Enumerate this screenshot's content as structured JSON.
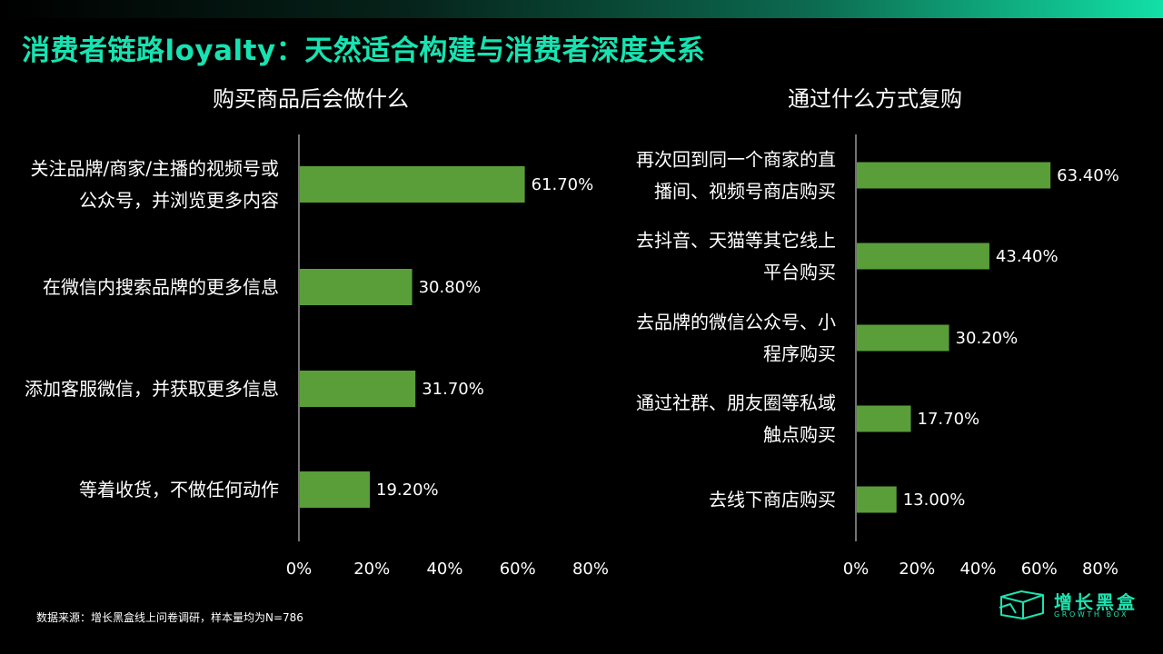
{
  "page_title": "消费者链路loyalty：天然适合构建与消费者深度关系",
  "source_note": "数据来源：增长黑盒线上问卷调研，样本量均为N=786",
  "brand": {
    "name": "增长黑盒",
    "sub": "GROWTH BOX",
    "accent": "#1de3b0"
  },
  "colors": {
    "bar": "#5a9e3a",
    "title": "#16e3b1",
    "background": "#000000"
  },
  "chart_data": [
    {
      "type": "bar",
      "orientation": "horizontal",
      "title": "购买商品后会做什么",
      "categories": [
        [
          "关注品牌/商家/主播的视频号或",
          "公众号，并浏览更多内容"
        ],
        [
          "在微信内搜索品牌的更多信息"
        ],
        [
          "添加客服微信，并获取更多信息"
        ],
        [
          "等着收货，不做任何动作"
        ]
      ],
      "values": [
        61.7,
        30.8,
        31.7,
        19.2
      ],
      "value_labels": [
        "61.70%",
        "30.80%",
        "31.70%",
        "19.20%"
      ],
      "xlim": [
        0,
        80
      ],
      "xticks": [
        "0%",
        "20%",
        "40%",
        "60%",
        "80%"
      ],
      "grid": false
    },
    {
      "type": "bar",
      "orientation": "horizontal",
      "title": "通过什么方式复购",
      "categories": [
        [
          "再次回到同一个商家的直",
          "播间、视频号商店购买"
        ],
        [
          "去抖音、天猫等其它线上",
          "平台购买"
        ],
        [
          "去品牌的微信公众号、小",
          "程序购买"
        ],
        [
          "通过社群、朋友圈等私域",
          "触点购买"
        ],
        [
          "去线下商店购买"
        ]
      ],
      "values": [
        63.4,
        43.4,
        30.2,
        17.7,
        13.0
      ],
      "value_labels": [
        "63.40%",
        "43.40%",
        "30.20%",
        "17.70%",
        "13.00%"
      ],
      "xlim": [
        0,
        80
      ],
      "xticks": [
        "0%",
        "20%",
        "40%",
        "60%",
        "80%"
      ],
      "grid": false
    }
  ]
}
